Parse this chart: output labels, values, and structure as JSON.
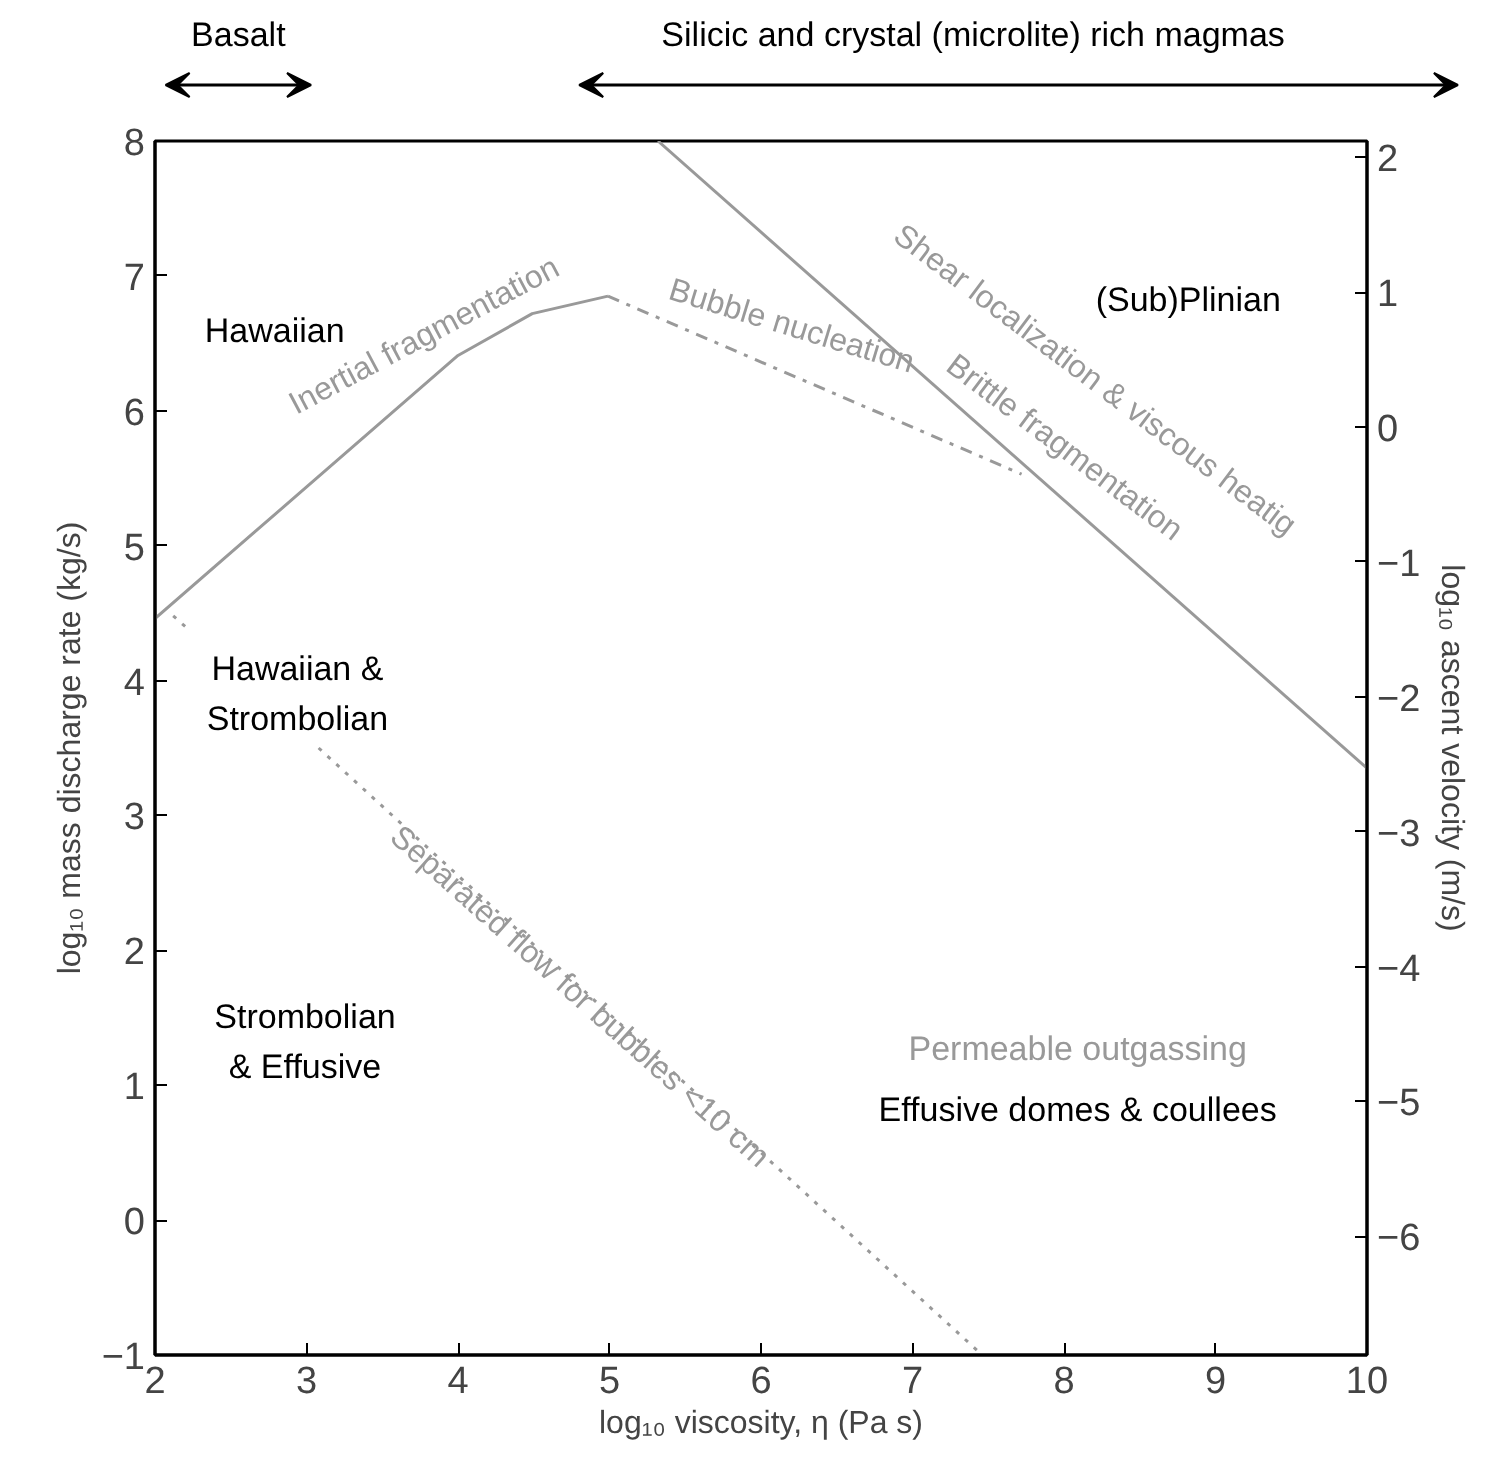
{
  "chart_data": {
    "type": "line",
    "xlabel": "log₁₀ viscosity, η (Pa s)",
    "ylabel": "log₁₀ mass discharge rate (kg/s)",
    "y2label": "log₁₀ ascent velocity (m/s)",
    "xlim": [
      2,
      10
    ],
    "xticks": [
      2,
      3,
      4,
      5,
      6,
      7,
      8,
      9,
      10
    ],
    "ylim": [
      -1,
      8
    ],
    "yticks": [
      -1,
      0,
      1,
      2,
      3,
      4,
      5,
      6,
      7,
      8
    ],
    "y2lim": [
      -6.88,
      2.12
    ],
    "y2ticks": [
      -6,
      -5,
      -4,
      -3,
      -2,
      -1,
      0,
      1,
      2
    ],
    "grid": false,
    "marker": "none",
    "series": [
      {
        "color": "#999999",
        "line_style": "solid",
        "x": [
          2,
          4,
          4.49,
          4.99
        ],
        "values": [
          4.46,
          6.41,
          6.72,
          6.85
        ]
      },
      {
        "color": "#999999",
        "line_style": "dashed",
        "x": [
          4.99,
          7.72
        ],
        "values": [
          6.85,
          5.53
        ]
      },
      {
        "color": "#999999",
        "line_style": "dotted",
        "x": [
          2.12,
          2.2,
          2.6,
          3.08,
          7.46
        ],
        "values": [
          4.48,
          4.4,
          null,
          3.5,
          -1
        ]
      },
      {
        "color": "#999999",
        "line_style": "solid",
        "x": [
          5.32,
          10
        ],
        "values": [
          8,
          3.35
        ]
      }
    ],
    "annotations": [
      "Hawaiian",
      "Hawaiian &\nStrombolian",
      "Strombolian\n& Effusive",
      "(Sub)Plinian",
      "Permeable outgassing",
      "Effusive domes & coullees",
      "Inertial fragmentation",
      "Bubble nucleation",
      "Shear localization & viscous heatig",
      "Brittle fragmentation",
      "Separated flow for bubbles <10 cm",
      "Basalt",
      "Silicic and crystal (microlite) rich magmas"
    ]
  }
}
